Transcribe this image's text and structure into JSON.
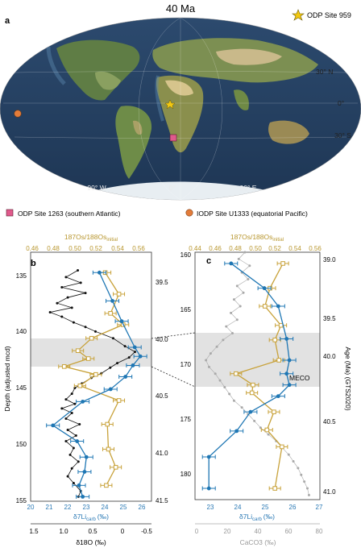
{
  "map": {
    "title": "40 Ma",
    "panel_label": "a",
    "legend_star": "ODP Site 959",
    "lat_labels": [
      "30° N",
      "0°",
      "30° S"
    ],
    "lon_labels": [
      "90° W",
      "0°",
      "90° E"
    ]
  },
  "legend": {
    "square": "ODP Site 1263 (southern Atlantic)",
    "circle": "IODP Site U1333 (equatorial Pacific)"
  },
  "colors": {
    "os": "#c8a23a",
    "li": "#1f77b4",
    "o18": "#111111",
    "caco3": "#a9a9a9",
    "meco_band": "#e2e2e2",
    "gold_axis": "#b8962e",
    "blue_axis": "#2a79b5"
  },
  "panel_b": {
    "label": "b",
    "top_axis_label_html": "¹⁸⁷Os/¹⁸⁸Osinitial",
    "top_axis_label": "187Os/188Os",
    "top_axis_sub": "initial",
    "top_ticks": [
      "0.46",
      "0.48",
      "0.50",
      "0.52",
      "0.54",
      "0.56"
    ],
    "left_ticks": [
      "135",
      "140",
      "145",
      "150",
      "155"
    ],
    "right_ticks": [
      "39.5",
      "40.0",
      "40.5",
      "41.0",
      "41.5"
    ],
    "bottom_ticks": [
      "20",
      "21",
      "22",
      "23",
      "24",
      "25",
      "26"
    ],
    "bottom_axis_label": "δ7Li",
    "bottom_axis_sub": "carb",
    "bottom_axis_unit": "(‰)",
    "bottom2_ticks": [
      "1.5",
      "1.0",
      "0.5",
      "0",
      "-0.5"
    ],
    "bottom2_axis_label": "δ18O (‰)",
    "y_axis_label": "Depth (adjusted mcd)"
  },
  "panel_c": {
    "label": "c",
    "top_ticks": [
      "0.44",
      "0.46",
      "0.48",
      "0.50",
      "0.52",
      "0.54",
      "0.56"
    ],
    "left_ticks": [
      "160",
      "165",
      "170",
      "175",
      "180"
    ],
    "right_ticks": [
      "39.0",
      "39.5",
      "40.0",
      "40.5",
      "41.0"
    ],
    "bottom_ticks": [
      "23",
      "24",
      "25",
      "26",
      "27"
    ],
    "bottom_axis_label": "δ7Li",
    "bottom_axis_sub": "carb",
    "bottom_axis_unit": "(‰)",
    "caco3_ticks": [
      "0",
      "20",
      "40",
      "60",
      "80"
    ],
    "caco3_label": "CaCO3 (‰)",
    "right_axis_label": "Age (Ma) (GTS2020)",
    "meco_label": "MECO"
  },
  "chart_data": [
    {
      "type": "line",
      "name": "panel-b",
      "ylim": [
        155,
        133
      ],
      "meco_band": [
        140.8,
        145.2
      ],
      "li": {
        "xlim": [
          20,
          26.5
        ],
        "points": [
          [
            23.7,
            134.8
          ],
          [
            24.4,
            137.3
          ],
          [
            24.9,
            139.1
          ],
          [
            25.6,
            141.4
          ],
          [
            25.9,
            142.2
          ],
          [
            25.5,
            143.0
          ],
          [
            25.1,
            144.0
          ],
          [
            24.3,
            145.1
          ],
          [
            22.8,
            146.2
          ],
          [
            21.2,
            148.3
          ],
          [
            22.5,
            149.7
          ],
          [
            23.0,
            151.1
          ],
          [
            22.9,
            152.4
          ],
          [
            22.6,
            153.6
          ],
          [
            22.8,
            154.6
          ]
        ]
      },
      "os": {
        "xlim": [
          0.45,
          0.565
        ],
        "points": [
          [
            0.521,
            134.8
          ],
          [
            0.534,
            136.7
          ],
          [
            0.526,
            138.4
          ],
          [
            0.538,
            139.4
          ],
          [
            0.508,
            140.6
          ],
          [
            0.495,
            141.7
          ],
          [
            0.505,
            142.4
          ],
          [
            0.482,
            143.1
          ],
          [
            0.512,
            143.8
          ],
          [
            0.497,
            144.8
          ],
          [
            0.534,
            146.1
          ],
          [
            0.523,
            148.2
          ],
          [
            0.524,
            150.4
          ],
          [
            0.531,
            152.0
          ],
          [
            0.522,
            153.6
          ]
        ]
      },
      "o18": {
        "xlim": [
          1.65,
          -0.4
        ],
        "points": [
          [
            0.85,
            134.6
          ],
          [
            1.05,
            135.2
          ],
          [
            0.8,
            135.7
          ],
          [
            1.12,
            136.1
          ],
          [
            0.72,
            136.6
          ],
          [
            1.02,
            137.0
          ],
          [
            1.2,
            137.5
          ],
          [
            0.95,
            137.9
          ],
          [
            1.32,
            138.3
          ],
          [
            1.12,
            138.7
          ],
          [
            0.92,
            139.2
          ],
          [
            0.72,
            139.6
          ],
          [
            0.55,
            140.0
          ],
          [
            0.25,
            140.6
          ],
          [
            0.05,
            141.3
          ],
          [
            -0.12,
            141.8
          ],
          [
            -0.02,
            142.3
          ],
          [
            0.18,
            142.8
          ],
          [
            0.3,
            143.2
          ],
          [
            0.45,
            143.7
          ],
          [
            0.62,
            144.1
          ],
          [
            0.78,
            144.6
          ],
          [
            0.9,
            145.0
          ],
          [
            0.95,
            145.5
          ],
          [
            1.05,
            146.0
          ],
          [
            0.9,
            146.4
          ],
          [
            1.12,
            146.8
          ],
          [
            0.95,
            147.2
          ],
          [
            1.05,
            147.7
          ],
          [
            0.82,
            148.2
          ],
          [
            1.02,
            148.7
          ],
          [
            0.88,
            149.2
          ],
          [
            1.05,
            149.7
          ],
          [
            0.92,
            150.3
          ],
          [
            0.98,
            150.9
          ],
          [
            0.84,
            151.5
          ],
          [
            0.95,
            152.1
          ],
          [
            1.02,
            152.8
          ],
          [
            0.92,
            153.4
          ],
          [
            0.8,
            154.1
          ],
          [
            0.84,
            154.6
          ]
        ]
      }
    },
    {
      "type": "line",
      "name": "panel-c",
      "ylim": [
        182,
        160
      ],
      "meco_band": [
        169.5,
        173.5
      ],
      "li": {
        "xlim": [
          22.5,
          27
        ],
        "points": [
          [
            23.8,
            161.0
          ],
          [
            25.0,
            163.2
          ],
          [
            25.5,
            164.8
          ],
          [
            25.8,
            167.7
          ],
          [
            25.9,
            169.6
          ],
          [
            25.8,
            170.8
          ],
          [
            25.9,
            171.8
          ],
          [
            25.5,
            172.8
          ],
          [
            24.5,
            174.2
          ],
          [
            24.0,
            175.9
          ],
          [
            23.0,
            178.2
          ],
          [
            23.0,
            181.0
          ]
        ]
      },
      "os": {
        "xlim": [
          0.44,
          0.565
        ],
        "points": [
          [
            0.528,
            161.0
          ],
          [
            0.515,
            163.2
          ],
          [
            0.51,
            164.8
          ],
          [
            0.526,
            166.5
          ],
          [
            0.52,
            167.8
          ],
          [
            0.524,
            169.6
          ],
          [
            0.481,
            170.8
          ],
          [
            0.498,
            171.8
          ],
          [
            0.497,
            172.5
          ],
          [
            0.519,
            174.2
          ],
          [
            0.512,
            175.8
          ],
          [
            0.527,
            177.3
          ],
          [
            0.52,
            181.0
          ]
        ]
      },
      "caco3": {
        "xlim": [
          0,
          80
        ],
        "points": [
          [
            32,
            160.0
          ],
          [
            28,
            160.6
          ],
          [
            35,
            161.2
          ],
          [
            30,
            161.8
          ],
          [
            34,
            162.4
          ],
          [
            27,
            163.0
          ],
          [
            31,
            163.6
          ],
          [
            25,
            164.2
          ],
          [
            29,
            164.8
          ],
          [
            23,
            165.4
          ],
          [
            27,
            166.0
          ],
          [
            20,
            166.6
          ],
          [
            24,
            167.2
          ],
          [
            18,
            167.8
          ],
          [
            14,
            168.4
          ],
          [
            10,
            169.0
          ],
          [
            7,
            169.6
          ],
          [
            9,
            170.2
          ],
          [
            13,
            170.8
          ],
          [
            16,
            171.4
          ],
          [
            19,
            172.0
          ],
          [
            22,
            172.6
          ],
          [
            25,
            173.2
          ],
          [
            30,
            173.8
          ],
          [
            34,
            174.4
          ],
          [
            38,
            175.0
          ],
          [
            42,
            175.6
          ],
          [
            47,
            176.2
          ],
          [
            52,
            176.8
          ],
          [
            56,
            177.4
          ],
          [
            60,
            178.0
          ],
          [
            63,
            178.6
          ],
          [
            66,
            179.2
          ],
          [
            68,
            179.8
          ],
          [
            70,
            180.4
          ],
          [
            72,
            181.0
          ],
          [
            73,
            181.6
          ]
        ]
      }
    }
  ]
}
